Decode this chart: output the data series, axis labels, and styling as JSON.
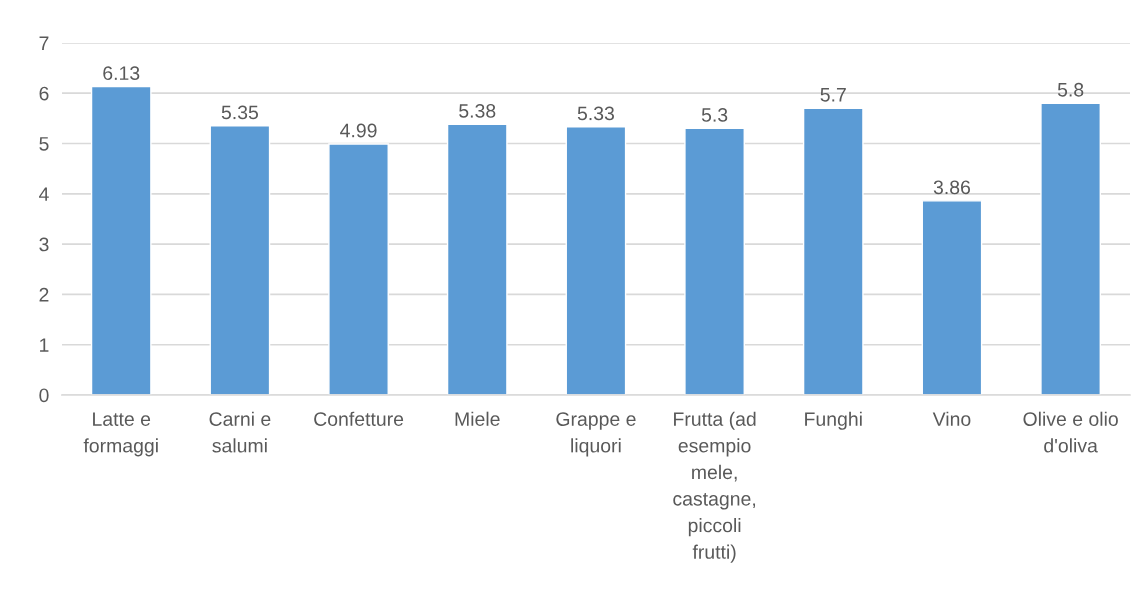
{
  "chart_data": {
    "type": "bar",
    "categories": [
      "Latte e\nformaggi",
      "Carni e\nsalumi",
      "Confetture",
      "Miele",
      "Grappe e\nliquori",
      "Frutta (ad\nesempio\nmele,\ncastagne,\npiccoli\nfrutti)",
      "Funghi",
      "Vino",
      "Olive e olio\nd'oliva"
    ],
    "values": [
      6.13,
      5.35,
      4.99,
      5.38,
      5.33,
      5.3,
      5.7,
      3.86,
      5.8
    ],
    "color": "#5b9bd5",
    "ylim": [
      0,
      7
    ],
    "yticks": [
      0,
      1,
      2,
      3,
      4,
      5,
      6,
      7
    ],
    "grid": "y",
    "data_labels": true,
    "legend": false
  }
}
